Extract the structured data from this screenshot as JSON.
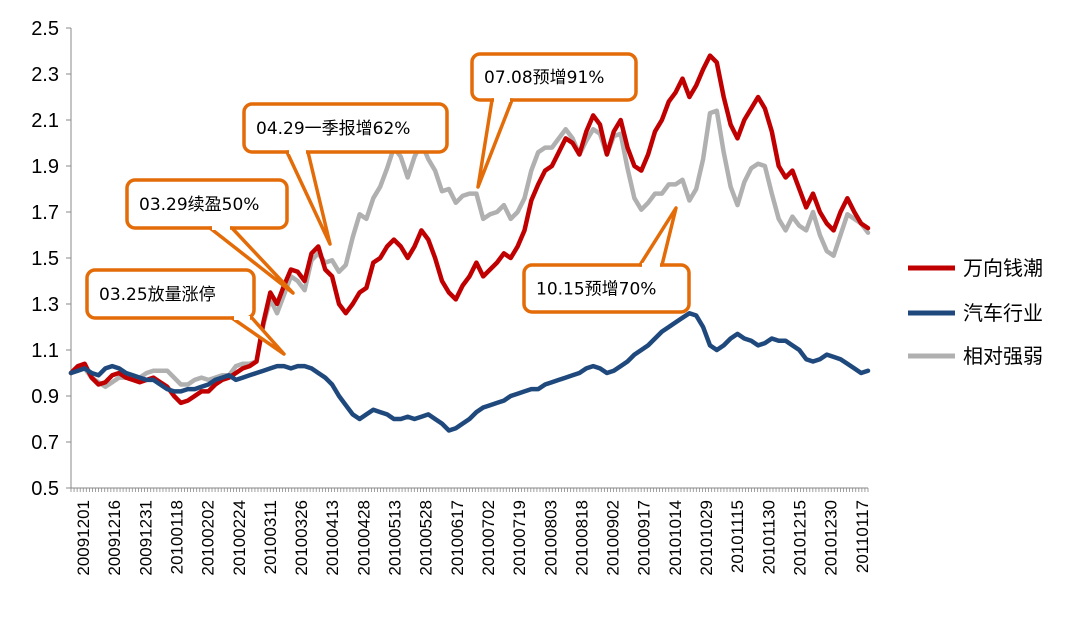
{
  "chart_data": {
    "type": "line",
    "title": "",
    "xlabel": "",
    "ylabel": "",
    "ylim": [
      0.5,
      2.5
    ],
    "yticks": [
      "0.5",
      "0.7",
      "0.9",
      "1.1",
      "1.3",
      "1.5",
      "1.7",
      "1.9",
      "2.1",
      "2.3",
      "2.5"
    ],
    "x_tick_labels": [
      "20091201",
      "20091216",
      "20091231",
      "20100118",
      "20100202",
      "20100224",
      "20100311",
      "20100326",
      "20100413",
      "20100428",
      "20100513",
      "20100528",
      "20100617",
      "20100702",
      "20100719",
      "20100803",
      "20100818",
      "20100902",
      "20100917",
      "20101014",
      "20101029",
      "20101115",
      "20101130",
      "20101215",
      "20101230",
      "20110117"
    ],
    "grid": false,
    "legend_position": "right",
    "series": [
      {
        "name": "万向钱潮",
        "color": "#C00000",
        "values": [
          1.0,
          1.03,
          1.04,
          0.98,
          0.95,
          0.96,
          0.99,
          1.0,
          0.98,
          0.97,
          0.96,
          0.97,
          0.98,
          0.96,
          0.94,
          0.9,
          0.87,
          0.88,
          0.9,
          0.92,
          0.92,
          0.95,
          0.97,
          0.98,
          1.0,
          1.02,
          1.03,
          1.05,
          1.22,
          1.35,
          1.3,
          1.38,
          1.45,
          1.44,
          1.4,
          1.52,
          1.55,
          1.45,
          1.42,
          1.3,
          1.26,
          1.3,
          1.35,
          1.37,
          1.48,
          1.5,
          1.55,
          1.58,
          1.55,
          1.5,
          1.55,
          1.62,
          1.58,
          1.5,
          1.4,
          1.35,
          1.32,
          1.38,
          1.42,
          1.48,
          1.42,
          1.45,
          1.48,
          1.52,
          1.5,
          1.55,
          1.62,
          1.75,
          1.82,
          1.88,
          1.9,
          1.96,
          2.02,
          2.0,
          1.95,
          2.05,
          2.12,
          2.08,
          1.95,
          2.05,
          2.1,
          1.98,
          1.9,
          1.88,
          1.95,
          2.05,
          2.1,
          2.18,
          2.22,
          2.28,
          2.2,
          2.25,
          2.32,
          2.38,
          2.35,
          2.2,
          2.08,
          2.02,
          2.1,
          2.15,
          2.2,
          2.15,
          2.05,
          1.9,
          1.85,
          1.88,
          1.8,
          1.72,
          1.78,
          1.7,
          1.65,
          1.62,
          1.7,
          1.76,
          1.7,
          1.65,
          1.63
        ]
      },
      {
        "name": "汽车行业",
        "color": "#1F497D",
        "values": [
          1.0,
          1.01,
          1.02,
          1.0,
          0.99,
          1.02,
          1.03,
          1.02,
          1.0,
          0.99,
          0.98,
          0.97,
          0.97,
          0.95,
          0.93,
          0.92,
          0.92,
          0.93,
          0.93,
          0.94,
          0.95,
          0.97,
          0.98,
          0.99,
          0.97,
          0.98,
          0.99,
          1.0,
          1.01,
          1.02,
          1.03,
          1.03,
          1.02,
          1.03,
          1.03,
          1.02,
          1.0,
          0.98,
          0.95,
          0.9,
          0.86,
          0.82,
          0.8,
          0.82,
          0.84,
          0.83,
          0.82,
          0.8,
          0.8,
          0.81,
          0.8,
          0.81,
          0.82,
          0.8,
          0.78,
          0.75,
          0.76,
          0.78,
          0.8,
          0.83,
          0.85,
          0.86,
          0.87,
          0.88,
          0.9,
          0.91,
          0.92,
          0.93,
          0.93,
          0.95,
          0.96,
          0.97,
          0.98,
          0.99,
          1.0,
          1.02,
          1.03,
          1.02,
          1.0,
          1.01,
          1.03,
          1.05,
          1.08,
          1.1,
          1.12,
          1.15,
          1.18,
          1.2,
          1.22,
          1.24,
          1.26,
          1.25,
          1.2,
          1.12,
          1.1,
          1.12,
          1.15,
          1.17,
          1.15,
          1.14,
          1.12,
          1.13,
          1.15,
          1.14,
          1.14,
          1.12,
          1.1,
          1.06,
          1.05,
          1.06,
          1.08,
          1.07,
          1.06,
          1.04,
          1.02,
          1.0,
          1.01
        ]
      },
      {
        "name": "相对强弱",
        "color": "#B0B0B0",
        "values": [
          1.0,
          1.02,
          1.02,
          0.98,
          0.96,
          0.94,
          0.96,
          0.98,
          0.98,
          0.98,
          0.98,
          1.0,
          1.01,
          1.01,
          1.01,
          0.98,
          0.95,
          0.95,
          0.97,
          0.98,
          0.97,
          0.98,
          0.99,
          0.99,
          1.03,
          1.04,
          1.04,
          1.05,
          1.21,
          1.32,
          1.26,
          1.34,
          1.42,
          1.4,
          1.36,
          1.49,
          1.52,
          1.48,
          1.49,
          1.44,
          1.47,
          1.59,
          1.69,
          1.67,
          1.76,
          1.81,
          1.89,
          1.98,
          1.94,
          1.85,
          1.94,
          2.0,
          1.93,
          1.88,
          1.79,
          1.8,
          1.74,
          1.77,
          1.78,
          1.78,
          1.67,
          1.69,
          1.7,
          1.73,
          1.67,
          1.7,
          1.76,
          1.88,
          1.96,
          1.98,
          1.98,
          2.02,
          2.06,
          2.02,
          1.95,
          2.01,
          2.06,
          2.04,
          1.95,
          2.03,
          2.04,
          1.89,
          1.76,
          1.71,
          1.74,
          1.78,
          1.78,
          1.82,
          1.82,
          1.84,
          1.75,
          1.8,
          1.93,
          2.13,
          2.14,
          1.96,
          1.81,
          1.73,
          1.83,
          1.89,
          1.91,
          1.9,
          1.78,
          1.67,
          1.62,
          1.68,
          1.64,
          1.62,
          1.7,
          1.6,
          1.53,
          1.51,
          1.6,
          1.69,
          1.67,
          1.65,
          1.61
        ]
      }
    ],
    "annotations": [
      {
        "text": "03.25放量涨停"
      },
      {
        "text": "03.29续盈50%"
      },
      {
        "text": "04.29一季报增62%"
      },
      {
        "text": "07.08预增91%"
      },
      {
        "text": "10.15预增70%"
      }
    ],
    "annotation_color": "#E36C09"
  }
}
